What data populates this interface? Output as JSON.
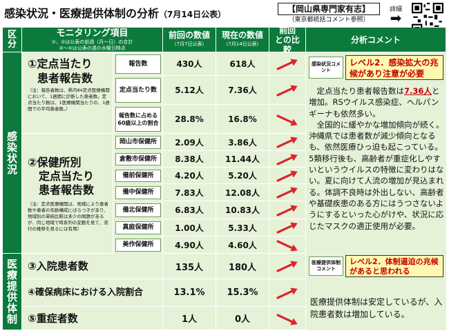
{
  "header": {
    "title": "感染状況・医療提供体制の分析",
    "title_date": "（7月14日公表）",
    "box_line1": "【岡山県専門家有志】",
    "box_line2": "（東京都統括コメント参照）",
    "detail_label": "詳細",
    "detail_arrow": "➡"
  },
  "columns": {
    "section": "区分",
    "item": "モニタリング項目",
    "item_note1": "①、②は公表の前週（月～日）の合計",
    "item_note2": "③～⑤は公表の週の水曜日時点",
    "prev": "前回の数値",
    "prev_date": "（7月7日公表）",
    "curr": "現在の数値",
    "curr_date": "（7月14日公表）",
    "compare": "前回との比較",
    "comment": "分析コメント"
  },
  "sections": {
    "infection": "感染状況",
    "medical": "医療提供体制"
  },
  "items": {
    "i1_title_a": "①定点当たり",
    "i1_title_b": "患者報告数",
    "i1_note": "（注：報告者数は、県内84定点医療機関において、1週間に診断した患者数。定点当たり数は、1医療機関当たりの、1週間での平均患者数。）",
    "i2_title_a": "②保健所別",
    "i2_title_b": "定点当たり",
    "i2_title_c": "患者報告数",
    "i2_note": "（注：定点医療機関は、地域により患者数や患者の年齢構成にばらつきがあり、地域別の単純比較は多少の問題があるが、同じ地域で時系列の変動を見て、流行の推移を見るには有用）",
    "i3_title": "③入院患者数",
    "i4_title": "④確保病床における入院割合",
    "i5_title": "⑤重症者数"
  },
  "rows": [
    {
      "label": "報告数",
      "prev": "430人",
      "curr": "618人"
    },
    {
      "label": "定点当たり数",
      "prev": "5.12人",
      "curr": "7.36人"
    },
    {
      "label": "報告数に占める60歳以上の割合",
      "prev": "28.8%",
      "curr": "16.8%"
    },
    {
      "label": "岡山市保健所",
      "prev": "2.09人",
      "curr": "3.86人"
    },
    {
      "label": "倉敷市保健所",
      "prev": "8.38人",
      "curr": "11.44人"
    },
    {
      "label": "備前保健所",
      "prev": "4.20人",
      "curr": "5.20人"
    },
    {
      "label": "備中保健所",
      "prev": "7.83人",
      "curr": "12.08人"
    },
    {
      "label": "備北保健所",
      "prev": "6.83人",
      "curr": "10.83人"
    },
    {
      "label": "真庭保健所",
      "prev": "1.00人",
      "curr": "5.33人"
    },
    {
      "label": "美作保健所",
      "prev": "4.90人",
      "curr": "4.60人"
    },
    {
      "label": "",
      "prev": "135人",
      "curr": "180人"
    },
    {
      "label": "",
      "prev": "13.1%",
      "curr": "15.3%"
    },
    {
      "label": "",
      "prev": "1人",
      "curr": "0人"
    }
  ],
  "comments": {
    "infection_label": "感染状況コメント",
    "infection_level": "レベル2．感染拡大の兆候があり注意が必要",
    "infection_text_pre": "定点当たり患者報告数は",
    "infection_text_red": "7.36人",
    "infection_text_post": "と増加。RSウイルス感染症、ヘルパンギーナも依然多い。",
    "infection_text2": "全国的に緩やかな増加傾向が続く。沖縄県では患者数が減少傾向となるも、依然医療ひっ迫も起こっている。5類移行後も、高齢者が重症化しやすいというウイルスの特徴に変わりはない。夏に向けて人流の増加が見込まれる。体調不良時は外出しない、高齢者や基礎疾患のある方にはうつさないようにするといった心がけや、状況に応じたマスクの適正使用が必要。",
    "medical_label": "医療提供体制コメント",
    "medical_level": "レベル2．体制逼迫の兆候があると思われる",
    "medical_text": "医療提供体制は安定しているが、入院患者数は増加している。"
  },
  "colors": {
    "green": "#0c7a3c",
    "light_green": "#e6f2d8",
    "arrow_red": "#d9262c",
    "yellow": "#fff9b0",
    "red_text": "#c00000"
  }
}
